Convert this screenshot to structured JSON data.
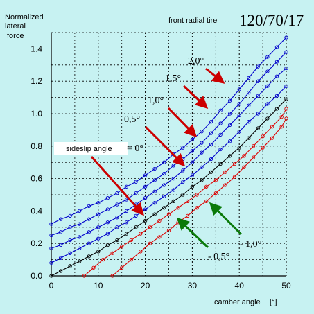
{
  "header": {
    "ylabel_lines": [
      "Normalized",
      "lateral",
      "force"
    ],
    "subtitle": "front radial tire",
    "tire_size": "120/70/17"
  },
  "axes": {
    "xlabel": "camber angle",
    "xunit": "[°]",
    "xticks": [
      "0",
      "10",
      "20",
      "30",
      "40",
      "50"
    ],
    "yticks": [
      "0.0",
      "0.2",
      "0.4",
      "0.6",
      "0.8",
      "1.0",
      "1.2",
      "1.4"
    ]
  },
  "annotations": {
    "sideslip_label": "sideslip angle",
    "eq0": "= 0°",
    "s05": "0,5°",
    "s10": "1,0°",
    "s15": "1,5°",
    "s20": "2,0°",
    "sm10": "- 1,0°",
    "sm05": "- 0,5°"
  },
  "colors": {
    "background": "#c7f2f2",
    "grid": "#000000",
    "positive": "#0000cc",
    "zero": "#000000",
    "negative": "#dd0000",
    "arrow_red": "#cc0000",
    "arrow_green": "#0a7a0a"
  },
  "chart_data": {
    "type": "line",
    "xlabel": "camber angle [°]",
    "ylabel": "Normalized lateral force",
    "title": "front radial tire 120/70/17",
    "xlim": [
      0,
      50
    ],
    "ylim": [
      0,
      1.5
    ],
    "grid": true,
    "series": [
      {
        "name": "2,0°",
        "color": "#0000cc",
        "x": [
          0,
          2,
          4,
          6,
          8,
          10,
          12,
          14,
          16,
          18,
          20,
          22,
          24,
          26,
          28,
          30,
          32,
          34,
          36,
          38,
          40,
          42,
          44,
          46,
          48,
          50
        ],
        "y": [
          0.32,
          0.35,
          0.37,
          0.4,
          0.43,
          0.45,
          0.48,
          0.51,
          0.55,
          0.58,
          0.62,
          0.66,
          0.7,
          0.75,
          0.79,
          0.84,
          0.89,
          0.95,
          1.02,
          1.08,
          1.15,
          1.22,
          1.29,
          1.35,
          1.41,
          1.47
        ]
      },
      {
        "name": "1,5°",
        "color": "#0000cc",
        "x": [
          0,
          2,
          4,
          6,
          8,
          10,
          12,
          14,
          16,
          18,
          20,
          22,
          24,
          26,
          28,
          30,
          32,
          34,
          36,
          38,
          40,
          42,
          44,
          46,
          48,
          50
        ],
        "y": [
          0.25,
          0.27,
          0.3,
          0.32,
          0.35,
          0.38,
          0.41,
          0.44,
          0.47,
          0.51,
          0.55,
          0.59,
          0.63,
          0.68,
          0.72,
          0.77,
          0.82,
          0.88,
          0.94,
          1.0,
          1.06,
          1.13,
          1.2,
          1.26,
          1.32,
          1.38
        ]
      },
      {
        "name": "1,0°",
        "color": "#0000cc",
        "x": [
          0,
          2,
          4,
          6,
          8,
          10,
          12,
          14,
          16,
          18,
          20,
          22,
          24,
          26,
          28,
          30,
          32,
          34,
          36,
          38,
          40,
          42,
          44,
          46,
          48,
          50
        ],
        "y": [
          0.17,
          0.19,
          0.22,
          0.24,
          0.27,
          0.3,
          0.33,
          0.36,
          0.4,
          0.44,
          0.48,
          0.52,
          0.56,
          0.6,
          0.65,
          0.7,
          0.76,
          0.81,
          0.87,
          0.93,
          0.99,
          1.05,
          1.11,
          1.17,
          1.23,
          1.28
        ]
      },
      {
        "name": "0,5°",
        "color": "#0000cc",
        "x": [
          0,
          2,
          4,
          6,
          8,
          10,
          12,
          14,
          16,
          18,
          20,
          22,
          24,
          26,
          28,
          30,
          32,
          34,
          36,
          38,
          40,
          42,
          44,
          46,
          48,
          50
        ],
        "y": [
          0.08,
          0.11,
          0.14,
          0.17,
          0.2,
          0.23,
          0.26,
          0.3,
          0.33,
          0.37,
          0.41,
          0.45,
          0.49,
          0.53,
          0.58,
          0.62,
          0.67,
          0.72,
          0.78,
          0.83,
          0.89,
          0.95,
          1.0,
          1.06,
          1.11,
          1.17
        ]
      },
      {
        "name": "0°",
        "color": "#000000",
        "x": [
          0,
          2,
          4,
          6,
          8,
          10,
          12,
          14,
          16,
          18,
          20,
          22,
          24,
          26,
          28,
          30,
          32,
          34,
          36,
          38,
          40,
          42,
          44,
          46,
          48,
          50
        ],
        "y": [
          0.0,
          0.03,
          0.06,
          0.09,
          0.12,
          0.15,
          0.19,
          0.22,
          0.26,
          0.3,
          0.34,
          0.38,
          0.42,
          0.46,
          0.5,
          0.55,
          0.59,
          0.64,
          0.69,
          0.74,
          0.79,
          0.85,
          0.91,
          0.97,
          1.03,
          1.09
        ]
      },
      {
        "name": "- 0,5°",
        "color": "#dd0000",
        "x": [
          7,
          9,
          11,
          13,
          15,
          17,
          19,
          21,
          23,
          25,
          27,
          29,
          31,
          33,
          35,
          37,
          39,
          41,
          43,
          45,
          47,
          49,
          50
        ],
        "y": [
          0.0,
          0.05,
          0.1,
          0.14,
          0.18,
          0.22,
          0.26,
          0.3,
          0.34,
          0.38,
          0.42,
          0.46,
          0.5,
          0.55,
          0.59,
          0.64,
          0.69,
          0.74,
          0.8,
          0.86,
          0.92,
          0.98,
          1.03
        ]
      },
      {
        "name": "- 1,0°",
        "color": "#dd0000",
        "x": [
          13,
          15,
          17,
          19,
          21,
          23,
          25,
          27,
          29,
          31,
          33,
          35,
          37,
          39,
          41,
          43,
          45,
          47,
          49,
          50
        ],
        "y": [
          0.0,
          0.05,
          0.1,
          0.15,
          0.2,
          0.24,
          0.28,
          0.33,
          0.37,
          0.42,
          0.46,
          0.51,
          0.56,
          0.61,
          0.67,
          0.73,
          0.79,
          0.85,
          0.92,
          0.97
        ]
      }
    ]
  }
}
